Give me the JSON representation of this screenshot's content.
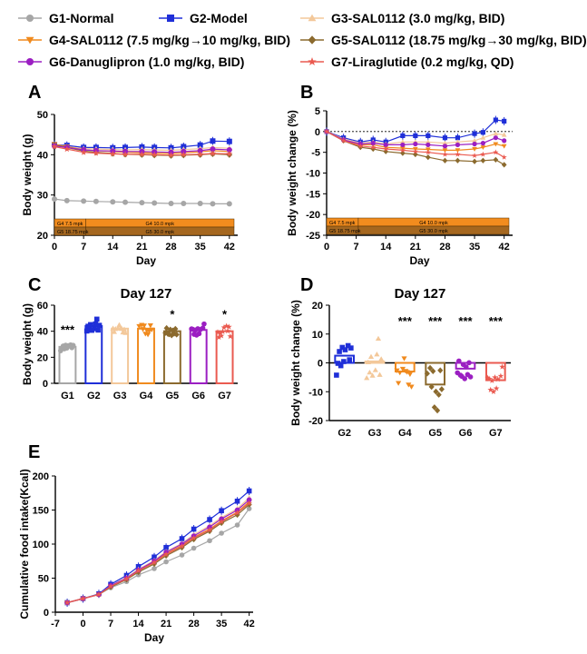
{
  "legend": [
    {
      "name": "G1-Normal",
      "color": "#a6a6a6",
      "marker": "circle"
    },
    {
      "name": "G2-Model",
      "color": "#1f2fd8",
      "marker": "square"
    },
    {
      "name": "G3-SAL0112 (3.0 mg/kg, BID)",
      "color": "#f3c89a",
      "marker": "triangle"
    },
    {
      "name": "G4-SAL0112 (7.5 mg/kg→10 mg/kg, BID)",
      "color": "#f08a1e",
      "marker": "triangle-down"
    },
    {
      "name": "G5-SAL0112 (18.75 mg/kg→30 mg/kg, BID)",
      "color": "#8b6a2e",
      "marker": "diamond"
    },
    {
      "name": "G6-Danuglipron (1.0 mg/kg, BID)",
      "color": "#9b1fc2",
      "marker": "circle"
    },
    {
      "name": "G7-Liraglutide (0.2 mg/kg, QD)",
      "color": "#ea5a50",
      "marker": "star"
    }
  ],
  "dosing": {
    "g4_pre": "G4 7.5 mpk",
    "g4_post": "G4 10.0 mpk",
    "g5_pre": "G5 18.75 mpk",
    "g5_post": "G5 30.0 mpk"
  },
  "chart_data": [
    {
      "panel": "A",
      "type": "line",
      "xlabel": "Day",
      "ylabel": "Body weight (g)",
      "xlim": [
        0,
        44
      ],
      "ylim": [
        20,
        50
      ],
      "xticks": [
        0,
        7,
        14,
        21,
        28,
        35,
        42
      ],
      "yticks": [
        20,
        30,
        40,
        50
      ],
      "x": [
        0,
        3,
        7,
        10,
        14,
        17,
        21,
        24,
        28,
        31,
        35,
        38,
        42
      ],
      "series": [
        {
          "name": "G1",
          "values": [
            29.0,
            28.6,
            28.5,
            28.4,
            28.3,
            28.2,
            28.1,
            28.0,
            27.9,
            27.9,
            27.9,
            27.8,
            27.8
          ]
        },
        {
          "name": "G2",
          "values": [
            42.5,
            42.3,
            41.8,
            41.8,
            41.7,
            41.8,
            41.9,
            41.8,
            41.7,
            42.0,
            42.4,
            43.4,
            43.3
          ]
        },
        {
          "name": "G3",
          "values": [
            42.3,
            42.0,
            41.5,
            41.4,
            41.3,
            41.2,
            41.3,
            41.2,
            41.1,
            41.3,
            41.5,
            41.8,
            41.6
          ]
        },
        {
          "name": "G4",
          "values": [
            42.6,
            42.0,
            41.2,
            41.0,
            40.8,
            40.6,
            40.5,
            40.4,
            40.3,
            40.5,
            40.7,
            41.0,
            40.8
          ]
        },
        {
          "name": "G5",
          "values": [
            42.4,
            41.8,
            40.9,
            40.6,
            40.3,
            40.1,
            40.0,
            39.9,
            39.8,
            39.9,
            40.0,
            40.2,
            40.0
          ]
        },
        {
          "name": "G6",
          "values": [
            42.2,
            41.8,
            41.2,
            41.0,
            40.9,
            40.8,
            40.8,
            40.7,
            40.6,
            40.8,
            41.0,
            41.4,
            41.2
          ]
        },
        {
          "name": "G7",
          "values": [
            42.0,
            41.4,
            40.6,
            40.4,
            40.2,
            40.1,
            40.1,
            40.0,
            39.9,
            40.0,
            40.1,
            40.3,
            40.2
          ]
        }
      ]
    },
    {
      "panel": "B",
      "type": "line",
      "xlabel": "Day",
      "ylabel": "Body weight change (%)",
      "xlim": [
        0,
        44
      ],
      "ylim": [
        -25,
        5
      ],
      "xticks": [
        0,
        7,
        14,
        21,
        28,
        35,
        42
      ],
      "yticks": [
        5,
        0,
        -5,
        -10,
        -15,
        -20,
        -25
      ],
      "x": [
        0,
        4,
        8,
        11,
        14,
        18,
        21,
        24,
        28,
        31,
        35,
        37,
        40,
        42
      ],
      "series": [
        {
          "name": "G2",
          "values": [
            0,
            -1.5,
            -2.5,
            -2.0,
            -2.5,
            -1.0,
            -1.0,
            -1.0,
            -1.5,
            -1.5,
            -0.5,
            -0.2,
            2.8,
            2.5
          ]
        },
        {
          "name": "G3",
          "values": [
            0,
            -1.8,
            -2.8,
            -2.5,
            -3.0,
            -2.5,
            -2.5,
            -2.5,
            -2.8,
            -2.5,
            -2.2,
            -1.5,
            -0.5,
            -0.8
          ]
        },
        {
          "name": "G4",
          "values": [
            0,
            -2.0,
            -3.2,
            -3.2,
            -3.8,
            -4.0,
            -4.2,
            -4.3,
            -4.5,
            -4.5,
            -4.2,
            -3.8,
            -3.0,
            -3.5
          ]
        },
        {
          "name": "G5",
          "values": [
            0,
            -2.2,
            -3.8,
            -4.2,
            -4.8,
            -5.2,
            -5.5,
            -6.2,
            -7.0,
            -7.0,
            -7.2,
            -7.0,
            -6.8,
            -8.0
          ]
        },
        {
          "name": "G6",
          "values": [
            0,
            -2.0,
            -3.0,
            -2.8,
            -3.2,
            -3.2,
            -3.0,
            -3.2,
            -3.5,
            -3.2,
            -3.0,
            -2.8,
            -1.5,
            -2.2
          ]
        },
        {
          "name": "G7",
          "values": [
            0,
            -2.2,
            -3.5,
            -3.8,
            -4.2,
            -4.5,
            -4.8,
            -5.0,
            -5.5,
            -5.5,
            -5.8,
            -5.5,
            -5.0,
            -6.2
          ]
        }
      ]
    },
    {
      "panel": "C",
      "type": "bar",
      "title": "Day 127",
      "ylabel": "Body weight (g)",
      "ylim": [
        0,
        60
      ],
      "yticks": [
        0,
        20,
        40,
        60
      ],
      "categories": [
        "G1",
        "G2",
        "G3",
        "G4",
        "G5",
        "G6",
        "G7"
      ],
      "values": [
        28,
        44,
        42,
        42,
        40,
        41,
        40
      ],
      "significance": [
        "***",
        "",
        "",
        "",
        "*",
        "",
        "*"
      ]
    },
    {
      "panel": "D",
      "type": "bar",
      "title": "Day 127",
      "ylabel": "Body weight change (%)",
      "ylim": [
        -20,
        20
      ],
      "yticks": [
        20,
        10,
        0,
        -10,
        -20
      ],
      "categories": [
        "G2",
        "G3",
        "G4",
        "G5",
        "G6",
        "G7"
      ],
      "values": [
        2.5,
        0.5,
        -3,
        -7.5,
        -2,
        -6
      ],
      "significance": [
        "",
        "",
        "***",
        "***",
        "***",
        "***"
      ]
    },
    {
      "panel": "E",
      "type": "line",
      "xlabel": "Day",
      "ylabel": "Cumulative food intake(Kcal)",
      "xlim": [
        -7,
        43
      ],
      "ylim": [
        0,
        200
      ],
      "xticks": [
        -7,
        0,
        7,
        14,
        21,
        28,
        35,
        42
      ],
      "yticks": [
        0,
        50,
        100,
        150,
        200
      ],
      "x": [
        -4,
        0,
        4,
        7,
        11,
        14,
        18,
        21,
        25,
        28,
        32,
        35,
        39,
        42
      ],
      "series": [
        {
          "name": "G1",
          "values": [
            14,
            20,
            26,
            36,
            45,
            55,
            64,
            74,
            84,
            94,
            105,
            116,
            128,
            152
          ]
        },
        {
          "name": "G2",
          "values": [
            14,
            20,
            27,
            41,
            54,
            67,
            81,
            95,
            108,
            122,
            136,
            149,
            163,
            178
          ]
        },
        {
          "name": "G3",
          "values": [
            14,
            20,
            26,
            39,
            51,
            63,
            76,
            89,
            101,
            114,
            127,
            139,
            152,
            168
          ]
        },
        {
          "name": "G4",
          "values": [
            14,
            20,
            26,
            38,
            49,
            61,
            74,
            86,
            98,
            110,
            122,
            134,
            147,
            162
          ]
        },
        {
          "name": "G5",
          "values": [
            14,
            20,
            26,
            37,
            48,
            59,
            71,
            83,
            95,
            107,
            119,
            131,
            143,
            158
          ]
        },
        {
          "name": "G6",
          "values": [
            14,
            20,
            26,
            39,
            50,
            62,
            75,
            88,
            100,
            112,
            125,
            137,
            150,
            165
          ]
        },
        {
          "name": "G7",
          "values": [
            14,
            20,
            26,
            38,
            49,
            61,
            73,
            85,
            97,
            109,
            121,
            133,
            146,
            160
          ]
        }
      ]
    }
  ]
}
